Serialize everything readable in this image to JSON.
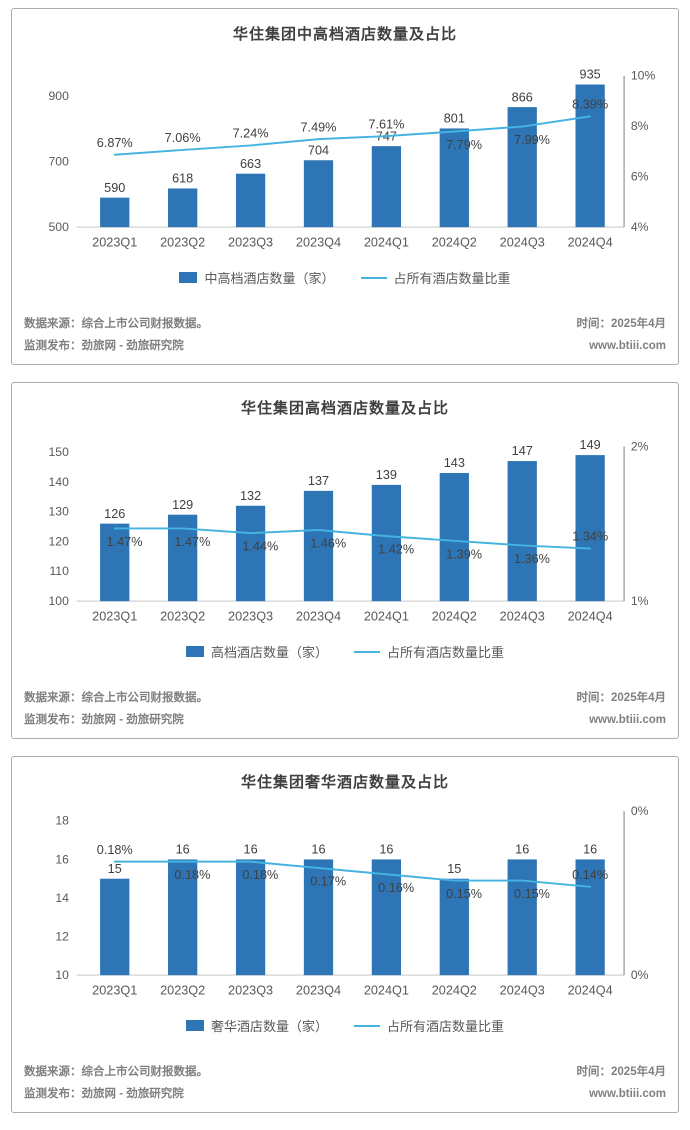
{
  "colors": {
    "bar": "#2E75B6",
    "line": "#45B3E0",
    "baseline": "#D9D9D9",
    "right_axis": "#A6A6A6",
    "value_label": "#404040",
    "tick_label": "#595959",
    "panel_border": "#ACACAC"
  },
  "footer": {
    "source": "数据来源：综合上市公司财报数据。",
    "publisher": "监测发布：劲旅网 - 劲旅研究院",
    "time": "时间：2025年4月",
    "site": "www.btiii.com"
  },
  "chart_data": [
    {
      "type": "bar",
      "subtype": "bar+line dual axis",
      "title": "华住集团中高档酒店数量及占比",
      "categories": [
        "2023Q1",
        "2023Q2",
        "2023Q3",
        "2023Q4",
        "2024Q1",
        "2024Q2",
        "2024Q3",
        "2024Q4"
      ],
      "series": [
        {
          "name": "中高档酒店数量（家）",
          "type": "bar",
          "axis": "left",
          "values": [
            590,
            618,
            663,
            704,
            747,
            801,
            866,
            935
          ]
        },
        {
          "name": "占所有酒店数量比重",
          "type": "line",
          "axis": "right",
          "values": [
            6.87,
            7.06,
            7.24,
            7.49,
            7.61,
            7.79,
            7.99,
            8.39
          ],
          "labels": [
            "6.87%",
            "7.06%",
            "7.24%",
            "7.49%",
            "7.61%",
            "7.79%",
            "7.99%",
            "8.39%"
          ]
        }
      ],
      "left_axis": {
        "lim": [
          500,
          1000
        ],
        "ticks": [
          {
            "v": 500,
            "label": "500"
          },
          {
            "v": 700,
            "label": "700"
          },
          {
            "v": 900,
            "label": "900"
          }
        ]
      },
      "right_axis": {
        "lim": [
          4,
          10.5
        ],
        "ticks": [
          {
            "v": 4,
            "label": "4%"
          },
          {
            "v": 6,
            "label": "6%"
          },
          {
            "v": 8,
            "label": "8%"
          },
          {
            "v": 10,
            "label": "10%"
          }
        ]
      },
      "pct_label_pos": [
        "above",
        "above",
        "above",
        "above",
        "above",
        "below",
        "below",
        "above"
      ],
      "grid": "off",
      "legend_position": "bottom"
    },
    {
      "type": "bar",
      "subtype": "bar+line dual axis",
      "title": "华住集团高档酒店数量及占比",
      "categories": [
        "2023Q1",
        "2023Q2",
        "2023Q3",
        "2023Q4",
        "2024Q1",
        "2024Q2",
        "2024Q3",
        "2024Q4"
      ],
      "series": [
        {
          "name": "高档酒店数量（家）",
          "type": "bar",
          "axis": "left",
          "values": [
            126,
            129,
            132,
            137,
            139,
            143,
            147,
            149
          ]
        },
        {
          "name": "占所有酒店数量比重",
          "type": "line",
          "axis": "right",
          "values": [
            1.47,
            1.47,
            1.44,
            1.46,
            1.42,
            1.39,
            1.36,
            1.34
          ],
          "labels": [
            "1.47%",
            "1.47%",
            "1.44%",
            "1.46%",
            "1.42%",
            "1.39%",
            "1.36%",
            "1.34%"
          ]
        }
      ],
      "left_axis": {
        "lim": [
          100,
          155
        ],
        "ticks": [
          {
            "v": 100,
            "label": "100"
          },
          {
            "v": 110,
            "label": "110"
          },
          {
            "v": 120,
            "label": "120"
          },
          {
            "v": 130,
            "label": "130"
          },
          {
            "v": 140,
            "label": "140"
          },
          {
            "v": 150,
            "label": "150"
          }
        ]
      },
      "right_axis": {
        "lim": [
          1,
          2.06
        ],
        "ticks": [
          {
            "v": 1,
            "label": "1%"
          },
          {
            "v": 2,
            "label": "2%"
          }
        ]
      },
      "pct_label_pos": [
        "below",
        "below",
        "below",
        "below",
        "below",
        "below",
        "below",
        "above"
      ],
      "grid": "off",
      "legend_position": "bottom"
    },
    {
      "type": "bar",
      "subtype": "bar+line dual axis",
      "title": "华住集团奢华酒店数量及占比",
      "categories": [
        "2023Q1",
        "2023Q2",
        "2023Q3",
        "2023Q4",
        "2024Q1",
        "2024Q2",
        "2024Q3",
        "2024Q4"
      ],
      "series": [
        {
          "name": "奢华酒店数量（家）",
          "type": "bar",
          "axis": "left",
          "values": [
            15,
            16,
            16,
            16,
            16,
            15,
            16,
            16
          ]
        },
        {
          "name": "占所有酒店数量比重",
          "type": "line",
          "axis": "right",
          "values": [
            0.18,
            0.18,
            0.18,
            0.17,
            0.16,
            0.15,
            0.15,
            0.14
          ],
          "labels": [
            "0.18%",
            "0.18%",
            "0.18%",
            "0.17%",
            "0.16%",
            "0.15%",
            "0.15%",
            "0.14%"
          ]
        }
      ],
      "left_axis": {
        "lim": [
          10,
          18.5
        ],
        "ticks": [
          {
            "v": 10,
            "label": "10"
          },
          {
            "v": 12,
            "label": "12"
          },
          {
            "v": 14,
            "label": "14"
          },
          {
            "v": 16,
            "label": "16"
          },
          {
            "v": 18,
            "label": "18"
          }
        ]
      },
      "right_axis": {
        "lim": [
          0,
          0.26
        ],
        "ticks": [
          {
            "v": 0.26,
            "label": "0%"
          },
          {
            "v": 0,
            "label": "0%"
          }
        ]
      },
      "pct_label_pos": [
        "above",
        "below",
        "below",
        "below",
        "below",
        "below",
        "below",
        "above"
      ],
      "grid": "off",
      "legend_position": "bottom"
    }
  ]
}
